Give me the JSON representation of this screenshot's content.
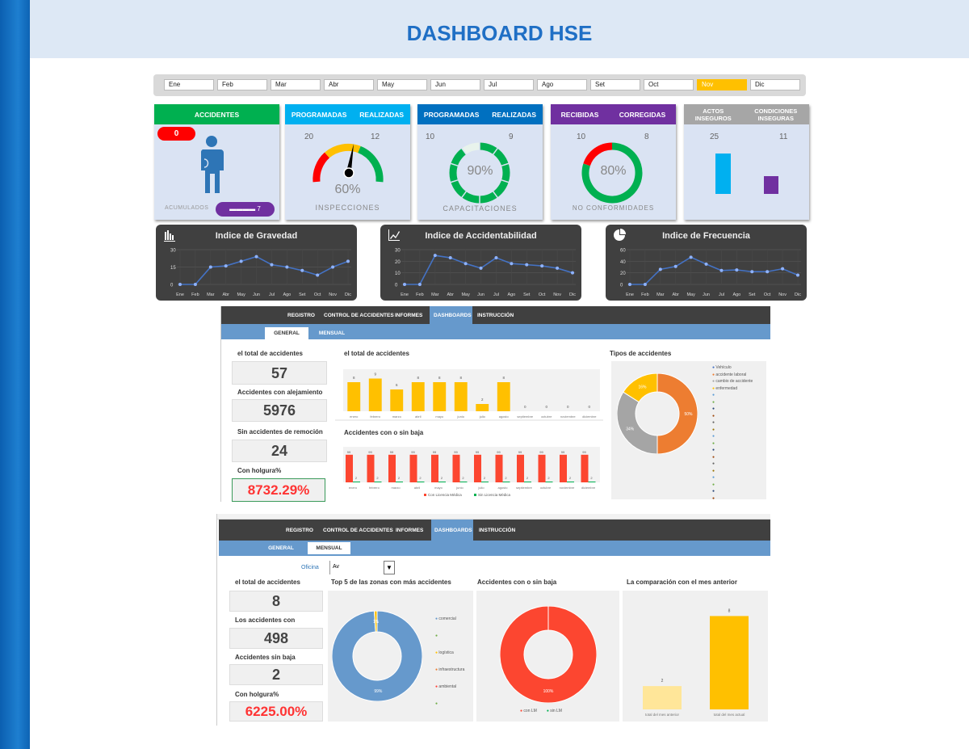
{
  "title": "DASHBOARD HSE",
  "months": [
    "Ene",
    "Feb",
    "Mar",
    "Abr",
    "May",
    "Jun",
    "Jul",
    "Ago",
    "Set",
    "Oct",
    "Nov",
    "Dic"
  ],
  "selected_month": "Nov",
  "colors": {
    "green": "#00b050",
    "cyan": "#00b0f0",
    "blue": "#0070c0",
    "purple": "#7030a0",
    "gray": "#a6a6a6",
    "red": "#ff0000",
    "yellow": "#ffc000",
    "card_bg": "#dae3f3"
  },
  "cards": {
    "accidentes": {
      "header": "ACCIDENTES",
      "count": "0",
      "acumulados_label": "ACUMULADOS",
      "acumulados_value": "▬▬▬▬ 7",
      "icon": "person-injured-icon"
    },
    "inspecciones": {
      "h1": "PROGRAMADAS",
      "h2": "REALIZADAS",
      "v1": "20",
      "v2": "12",
      "pct": "60%",
      "label": "INSPECCIONES",
      "value": 60
    },
    "capacitaciones": {
      "h1": "PROGRAMADAS",
      "h2": "REALIZADAS",
      "v1": "10",
      "v2": "9",
      "pct": "90%",
      "label": "CAPACITACIONES",
      "value": 90
    },
    "no_conformidades": {
      "h1": "RECIBIDAS",
      "h2": "CORREGIDAS",
      "v1": "10",
      "v2": "8",
      "pct": "80%",
      "label": "NO CONFORMIDADES",
      "value": 80
    },
    "actos": {
      "h1": "ACTOS INSEGUROS",
      "h2": "CONDICIONES INSEGURAS",
      "v1": "25",
      "v2": "11",
      "values": [
        25,
        11
      ]
    }
  },
  "chart_data": [
    {
      "type": "line",
      "title": "Indice de Gravedad",
      "icon": "bar-chart-icon",
      "categories": [
        "Ene",
        "Feb",
        "Mar",
        "Abr",
        "May",
        "Jun",
        "Jul",
        "Ago",
        "Set",
        "Oct",
        "Nov",
        "Dic"
      ],
      "values": [
        0,
        0,
        15,
        16,
        20,
        24,
        17,
        15,
        12,
        8,
        15,
        20
      ],
      "yticks": [
        "0",
        "15",
        "30"
      ],
      "ylim": [
        0,
        30
      ]
    },
    {
      "type": "line",
      "title": "Indice de Accidentabilidad",
      "icon": "line-chart-icon",
      "categories": [
        "Ene",
        "Feb",
        "Mar",
        "Abr",
        "May",
        "Jun",
        "Jul",
        "Ago",
        "Set",
        "Oct",
        "Nov",
        "Dic"
      ],
      "values": [
        0,
        0,
        25,
        23,
        18,
        14,
        23,
        18,
        17,
        16,
        14,
        10
      ],
      "yticks": [
        "0",
        "10",
        "20",
        "30"
      ],
      "ylim": [
        0,
        30
      ]
    },
    {
      "type": "line",
      "title": "Indice de Frecuencia",
      "icon": "pie-chart-icon",
      "categories": [
        "Ene",
        "Feb",
        "Mar",
        "Abr",
        "May",
        "Jun",
        "Jul",
        "Ago",
        "Set",
        "Oct",
        "Nov",
        "Dic"
      ],
      "values": [
        0,
        0,
        26,
        31,
        47,
        35,
        24,
        25,
        22,
        22,
        27,
        16
      ],
      "yticks": [
        "0",
        "20",
        "40",
        "60"
      ],
      "ylim": [
        0,
        60
      ]
    },
    {
      "type": "bar",
      "title": "el total de accidentes",
      "categories": [
        "enero",
        "febrero",
        "marzo",
        "abril",
        "mayo",
        "junio",
        "julio",
        "agosto",
        "septiembre",
        "octubre",
        "noviembre",
        "diciembre"
      ],
      "values": [
        8,
        9,
        6,
        8,
        8,
        8,
        2,
        8,
        0,
        0,
        0,
        0
      ],
      "ylim": [
        0,
        10
      ]
    },
    {
      "type": "bar",
      "title": "Accidentes con o sin baja",
      "categories": [
        "enero",
        "febrero",
        "marzo",
        "abril",
        "mayo",
        "junio",
        "julio",
        "agosto",
        "septiembre",
        "octubre",
        "noviembre",
        "diciembre"
      ],
      "series": [
        {
          "name": "Con Licencia Médica",
          "values": [
            99,
            99,
            99,
            99,
            99,
            99,
            99,
            99,
            99,
            99,
            99,
            99
          ]
        },
        {
          "name": "Sin Licencia Médica",
          "values": [
            2,
            2,
            2,
            2,
            2,
            2,
            2,
            2,
            2,
            2,
            2,
            2
          ]
        }
      ],
      "ylim": [
        0,
        110
      ]
    },
    {
      "type": "pie",
      "title": "Tipos de accidentes",
      "labels": [
        "Vehículo",
        "accidente laboral",
        "cambio de accidente",
        "enfermedad"
      ],
      "values": [
        0,
        50,
        34,
        16
      ],
      "value_labels": [
        "0%",
        "50%",
        "34%",
        "16%"
      ],
      "colors": [
        "#4472c4",
        "#ed7d31",
        "#a5a5a5",
        "#ffc000"
      ]
    },
    {
      "type": "pie",
      "title": "Top 5 de las zonas con más accidentes",
      "labels": [
        "comercial",
        "",
        "logística",
        "infraestructura",
        "ambiental",
        ""
      ],
      "values": [
        99,
        0,
        1,
        0,
        0,
        0
      ],
      "value_labels": [
        "99%",
        "",
        "1%",
        "",
        "",
        ""
      ],
      "colors": [
        "#6699cc",
        "#70ad47",
        "#ffc000",
        "#ed7d31",
        "#ff4136",
        "#70ad47"
      ]
    },
    {
      "type": "pie",
      "title": "Accidentes con o sin baja",
      "labels": [
        "con LM",
        "sin LM"
      ],
      "values": [
        100,
        0
      ],
      "value_labels": [
        "100%",
        "0%"
      ],
      "colors": [
        "#fc4630",
        "#00b050"
      ]
    },
    {
      "type": "bar",
      "title": "La comparación con el mes anterior",
      "categories": [
        "total del mes anterior",
        "total del mes actual"
      ],
      "values": [
        2,
        8
      ],
      "colors": [
        "#ffe699",
        "#ffc000"
      ],
      "ylim": [
        0,
        9
      ]
    }
  ],
  "sheet1": {
    "nav": [
      "REGISTRO",
      "CONTROL DE ACCIDENTES",
      "INFORMES",
      "DASHBOARDS",
      "INSTRUCCIÓN"
    ],
    "subtabs": [
      "GENERAL",
      "MENSUAL"
    ],
    "kpis": [
      {
        "label": "el total de accidentes",
        "value": "57"
      },
      {
        "label": "Accidentes con alejamiento",
        "value": "5976"
      },
      {
        "label": "Sin accidentes de remoción",
        "value": "24"
      },
      {
        "label": "Con holgura%",
        "value": "8732.29%"
      }
    ]
  },
  "sheet2": {
    "nav": [
      "REGISTRO",
      "CONTROL DE ACCIDENTES",
      "INFORMES",
      "DASHBOARDS",
      "INSTRUCCIÓN"
    ],
    "subtabs": [
      "GENERAL",
      "MENSUAL"
    ],
    "filter_label": "Oficina",
    "filter_value": "Av",
    "kpis": [
      {
        "label": "el total de accidentes",
        "value": "8"
      },
      {
        "label": "Los accidentes con",
        "value": "498"
      },
      {
        "label": "Accidentes sin baja",
        "value": "2"
      },
      {
        "label": "Con holgura%",
        "value": "6225.00%"
      }
    ]
  }
}
